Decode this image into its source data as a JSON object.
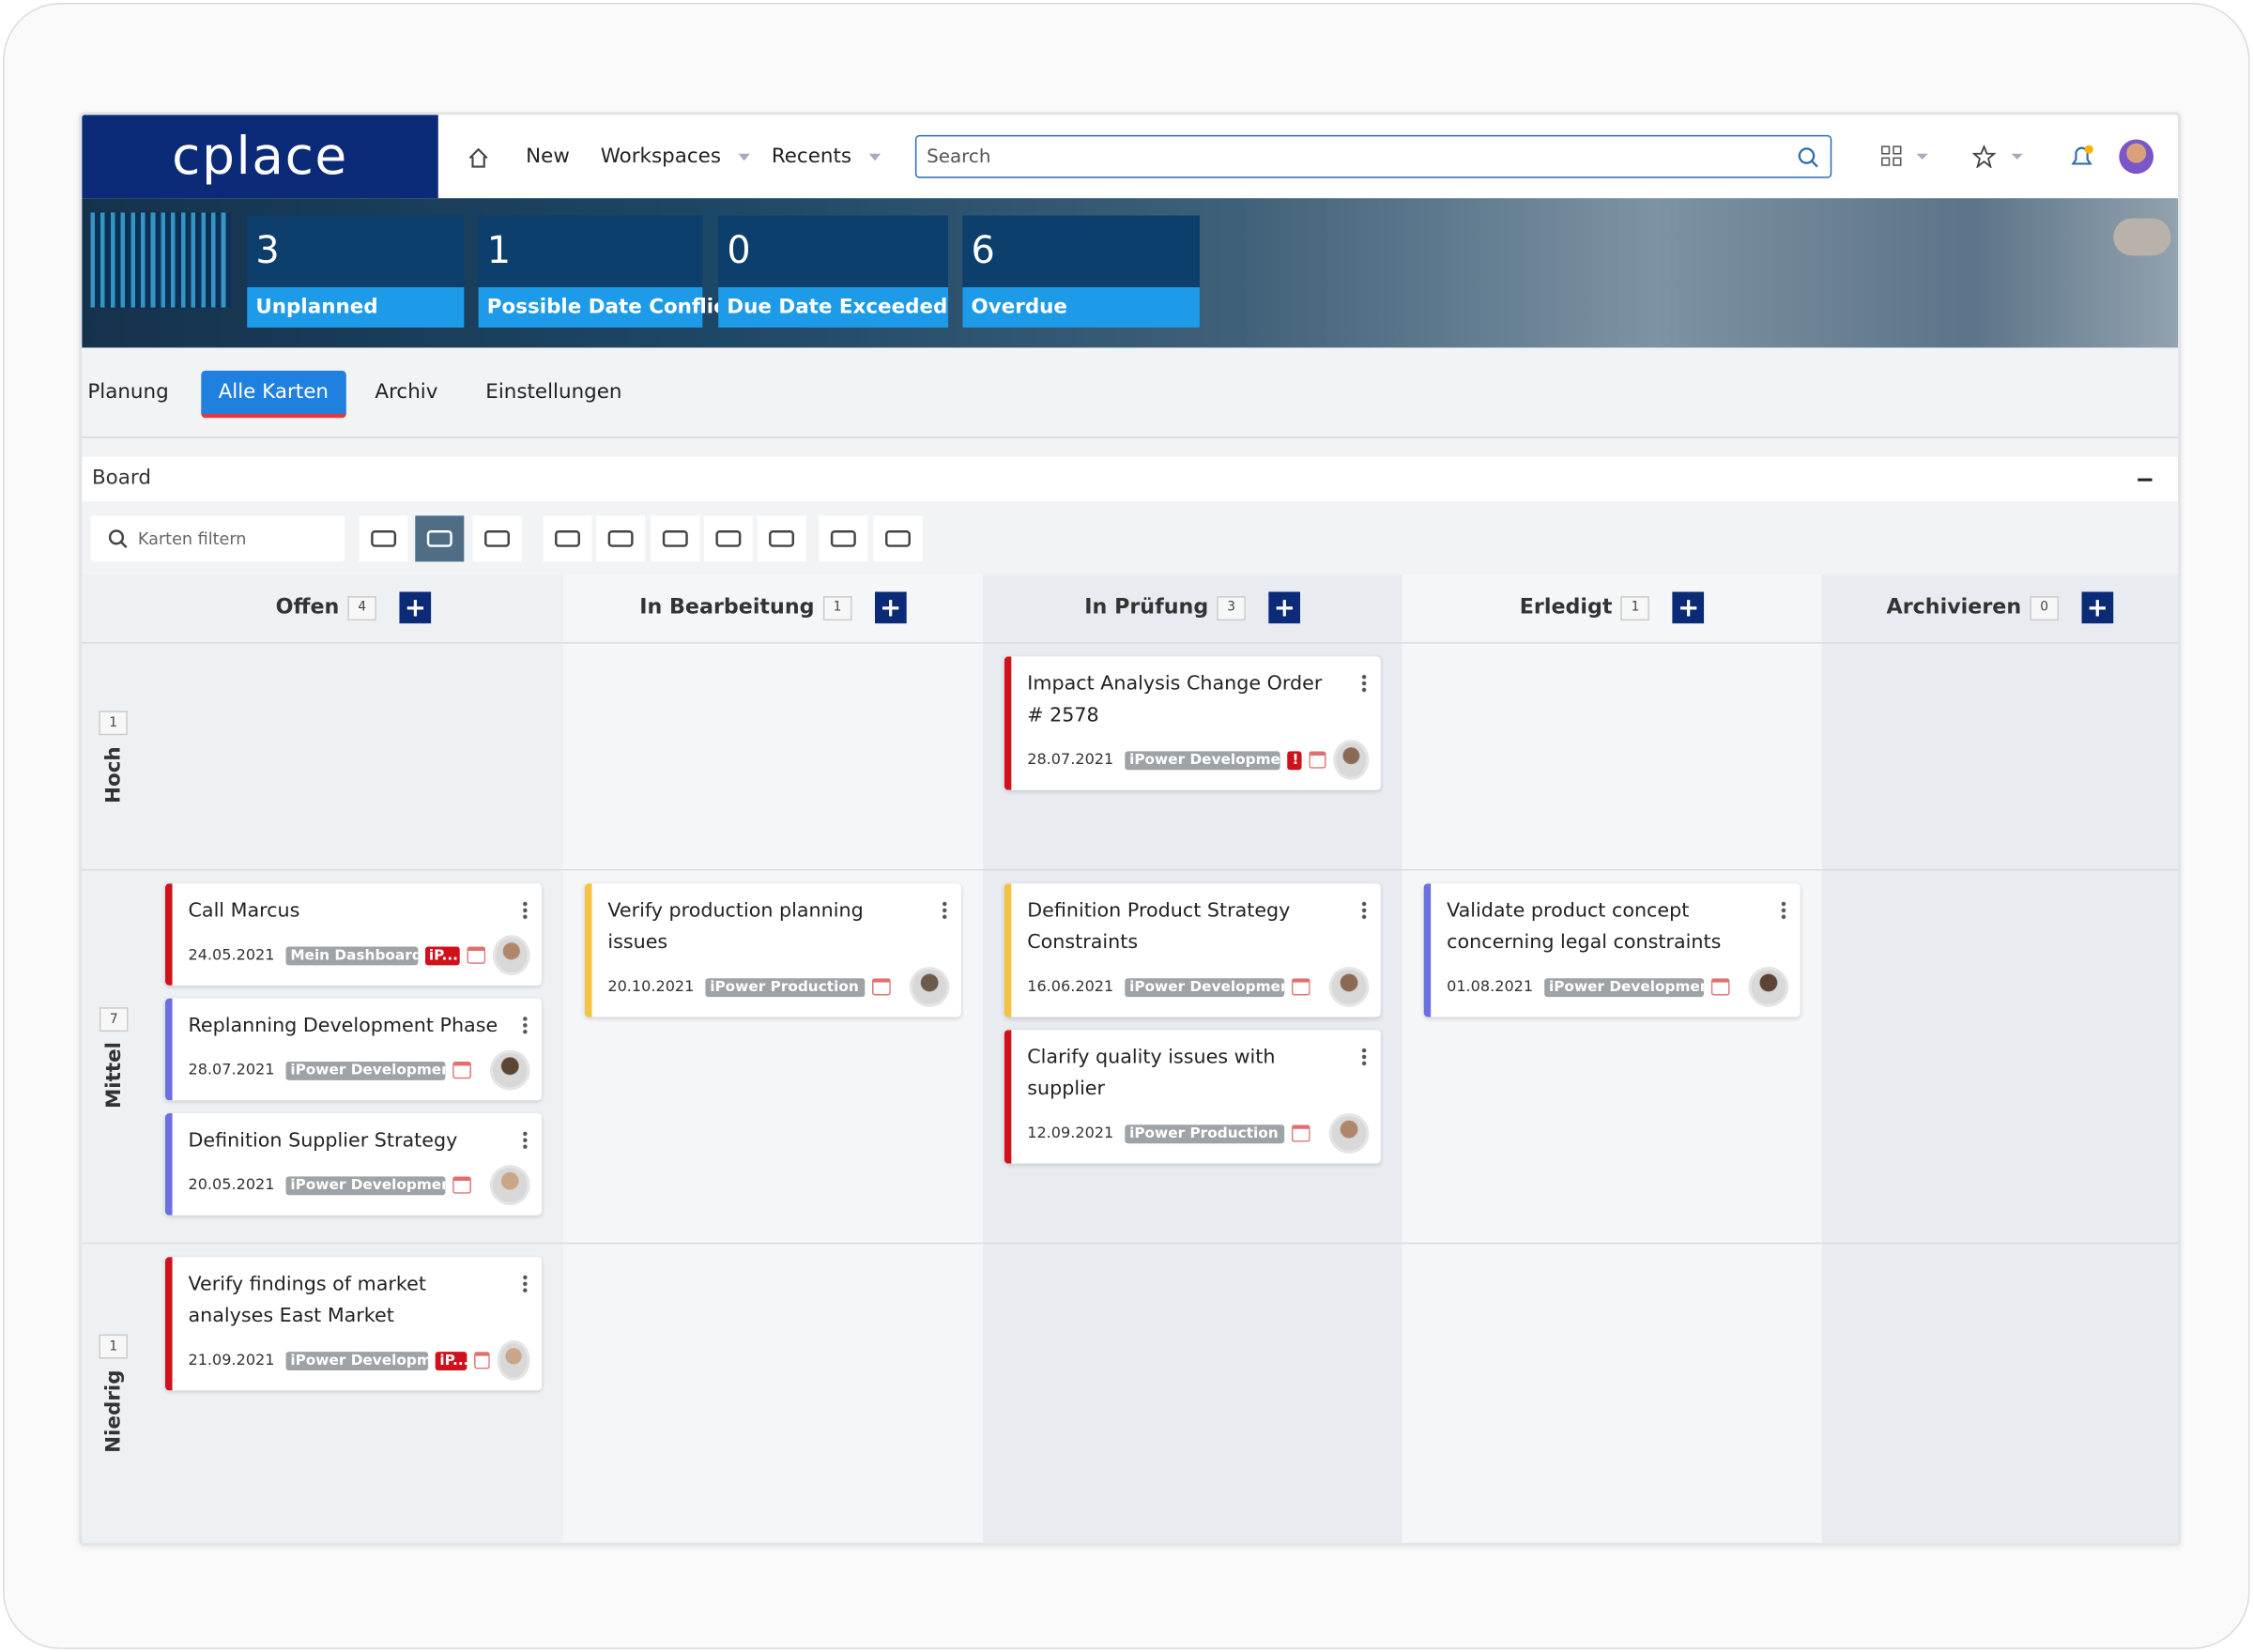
{
  "header": {
    "logo": "cplace",
    "nav": [
      "New",
      "Workspaces",
      "Recents"
    ],
    "search_placeholder": "Search"
  },
  "kpis": [
    {
      "value": 3,
      "label": "Unplanned"
    },
    {
      "value": 1,
      "label": "Possible Date Conflict"
    },
    {
      "value": 0,
      "label": "Due Date Exceeded"
    },
    {
      "value": 6,
      "label": "Overdue"
    }
  ],
  "tabs": {
    "items": [
      "Planung",
      "Alle Karten",
      "Archiv",
      "Einstellungen"
    ],
    "active": 1
  },
  "board": {
    "title": "Board",
    "filter_placeholder": "Karten filtern",
    "columns": [
      {
        "name": "Offen",
        "count": 4
      },
      {
        "name": "In Bearbeitung",
        "count": 1
      },
      {
        "name": "In Prüfung",
        "count": 3
      },
      {
        "name": "Erledigt",
        "count": 1
      },
      {
        "name": "Archivieren",
        "count": 0
      }
    ],
    "rows": [
      {
        "name": "Hoch",
        "count": 1,
        "cells": [
          [],
          [],
          [
            {
              "title": "Impact Analysis Change Order # 2578",
              "date": "28.07.2021",
              "color": "#d0111b",
              "tags": [
                {
                  "text": "iPower Development",
                  "color": "#9ea3a8"
                },
                {
                  "text": "!",
                  "color": "#d0111b"
                }
              ]
            }
          ],
          [],
          []
        ]
      },
      {
        "name": "Mittel",
        "count": 7,
        "cells": [
          [
            {
              "title": "Call Marcus",
              "date": "24.05.2021",
              "color": "#d0111b",
              "tags": [
                {
                  "text": "Mein Dashboard",
                  "color": "#9ea3a8"
                },
                {
                  "text": "iP...",
                  "color": "#d0111b"
                }
              ]
            },
            {
              "title": "Replanning Development Phase",
              "date": "28.07.2021",
              "color": "#6b6fe0",
              "tags": [
                {
                  "text": "iPower Development",
                  "color": "#9ea3a8"
                }
              ]
            },
            {
              "title": "Definition Supplier Strategy",
              "date": "20.05.2021",
              "color": "#6b6fe0",
              "tags": [
                {
                  "text": "iPower Development",
                  "color": "#9ea3a8"
                }
              ]
            }
          ],
          [
            {
              "title": "Verify production planning issues",
              "date": "20.10.2021",
              "color": "#f5c242",
              "tags": [
                {
                  "text": "iPower Production P",
                  "color": "#9ea3a8"
                }
              ]
            }
          ],
          [
            {
              "title": "Definition Product Strategy Constraints",
              "date": "16.06.2021",
              "color": "#f5c242",
              "tags": [
                {
                  "text": "iPower Developmen",
                  "color": "#9ea3a8"
                }
              ]
            },
            {
              "title": "Clarify quality issues with supplier",
              "date": "12.09.2021",
              "color": "#d0111b",
              "tags": [
                {
                  "text": "iPower Production Plan",
                  "color": "#9ea3a8"
                }
              ]
            }
          ],
          [
            {
              "title": "Validate product concept concerning legal constraints",
              "date": "01.08.2021",
              "color": "#6b6fe0",
              "tags": [
                {
                  "text": "iPower Development",
                  "color": "#9ea3a8"
                }
              ]
            }
          ],
          []
        ]
      },
      {
        "name": "Niedrig",
        "count": 1,
        "cells": [
          [
            {
              "title": "Verify findings of market analyses East Market",
              "date": "21.09.2021",
              "color": "#d0111b",
              "tags": [
                {
                  "text": "iPower Development",
                  "color": "#9ea3a8"
                },
                {
                  "text": "iP...",
                  "color": "#d0111b"
                }
              ]
            }
          ],
          [],
          [],
          [],
          []
        ]
      }
    ]
  }
}
